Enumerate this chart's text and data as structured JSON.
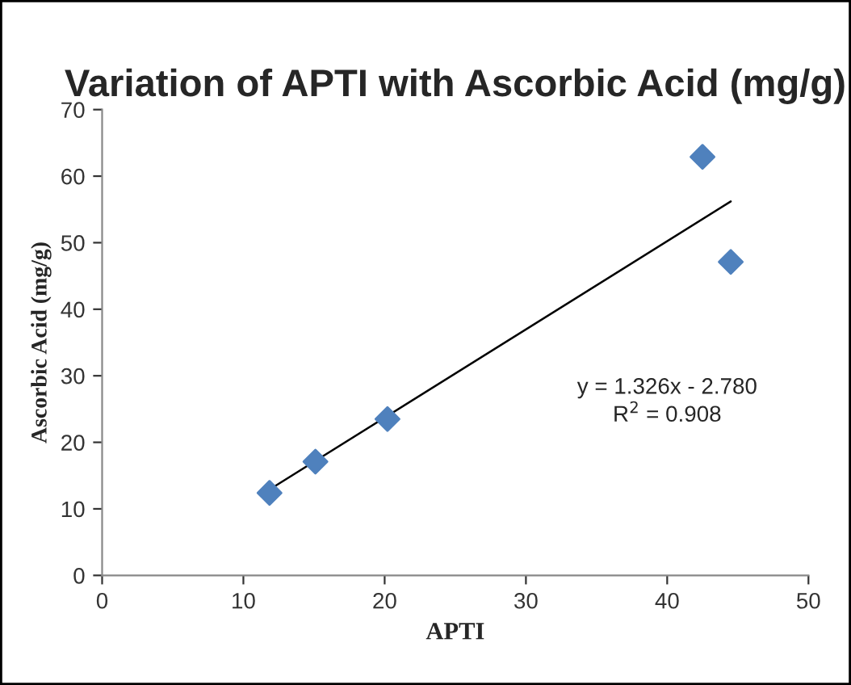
{
  "chart_data": {
    "type": "scatter",
    "title": "Variation of APTI with Ascorbic Acid (mg/g)",
    "xlabel": "APTI",
    "ylabel": "Ascorbic Acid (mg/g)",
    "series": [
      {
        "marker": "diamond",
        "color": "#4f81bd",
        "x": [
          11.85,
          15.1,
          20.2,
          42.5,
          44.5
        ],
        "values": [
          12.4,
          17.1,
          23.5,
          62.9,
          47.1
        ]
      },
      {
        "type": "line",
        "marker": "none",
        "color": "#000000",
        "x": [
          11.85,
          44.5
        ],
        "values": [
          12.9,
          56.2
        ]
      }
    ],
    "xlim": [
      0,
      50
    ],
    "xticks": [
      0,
      10,
      20,
      30,
      40,
      50
    ],
    "ylim": [
      0,
      70
    ],
    "yticks": [
      0,
      10,
      20,
      30,
      40,
      50,
      60,
      70
    ],
    "grid": false,
    "legend": false,
    "annotations": [
      "y = 1.326x - 2.780",
      "R$^{2}$ = 0.908"
    ]
  }
}
